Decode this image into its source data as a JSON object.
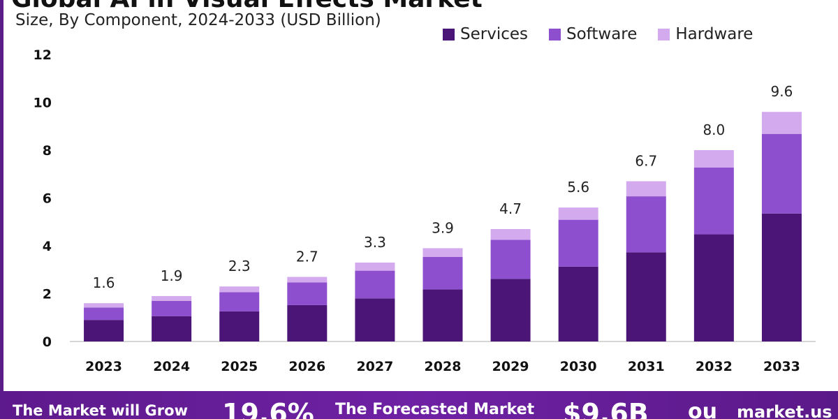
{
  "header": {
    "title": "Global AI in Visual Effects Market",
    "subtitle": "Size, By Component, 2024-2033 (USD Billion)"
  },
  "legend": [
    {
      "label": "Services",
      "color": "#4a1577"
    },
    {
      "label": "Software",
      "color": "#8e4fce"
    },
    {
      "label": "Hardware",
      "color": "#d3aaee"
    }
  ],
  "chart_data": {
    "type": "bar",
    "stacked": true,
    "title": "Global AI in Visual Effects Market",
    "subtitle": "Size, By Component, 2024-2033 (USD Billion)",
    "categories": [
      "2023",
      "2024",
      "2025",
      "2026",
      "2027",
      "2028",
      "2029",
      "2030",
      "2031",
      "2032",
      "2033"
    ],
    "series": [
      {
        "name": "Services",
        "color": "#4a1577",
        "values": [
          0.9,
          1.06,
          1.26,
          1.52,
          1.8,
          2.18,
          2.62,
          3.13,
          3.73,
          4.48,
          5.35
        ]
      },
      {
        "name": "Software",
        "color": "#8e4fce",
        "values": [
          0.52,
          0.64,
          0.8,
          0.95,
          1.16,
          1.36,
          1.63,
          1.96,
          2.34,
          2.79,
          3.33
        ]
      },
      {
        "name": "Hardware",
        "color": "#d3aaee",
        "values": [
          0.18,
          0.2,
          0.24,
          0.23,
          0.34,
          0.36,
          0.45,
          0.51,
          0.63,
          0.73,
          0.92
        ]
      }
    ],
    "totals": [
      "1.6",
      "1.9",
      "2.3",
      "2.7",
      "3.3",
      "3.9",
      "4.7",
      "5.6",
      "6.7",
      "8.0",
      "9.6"
    ],
    "yticks": [
      "0",
      "2",
      "4",
      "6",
      "8",
      "10",
      "12"
    ],
    "ylim": [
      0,
      12
    ],
    "xlabel": "",
    "ylabel": "",
    "legend_position": "top-right",
    "grid": false
  },
  "footer": {
    "grow_label": "The Market will Grow",
    "cagr": "19.6%",
    "forecast_label": "The Forecasted Market",
    "size": "$9.6B",
    "brand_mark": "ou",
    "brand": "market.us"
  }
}
